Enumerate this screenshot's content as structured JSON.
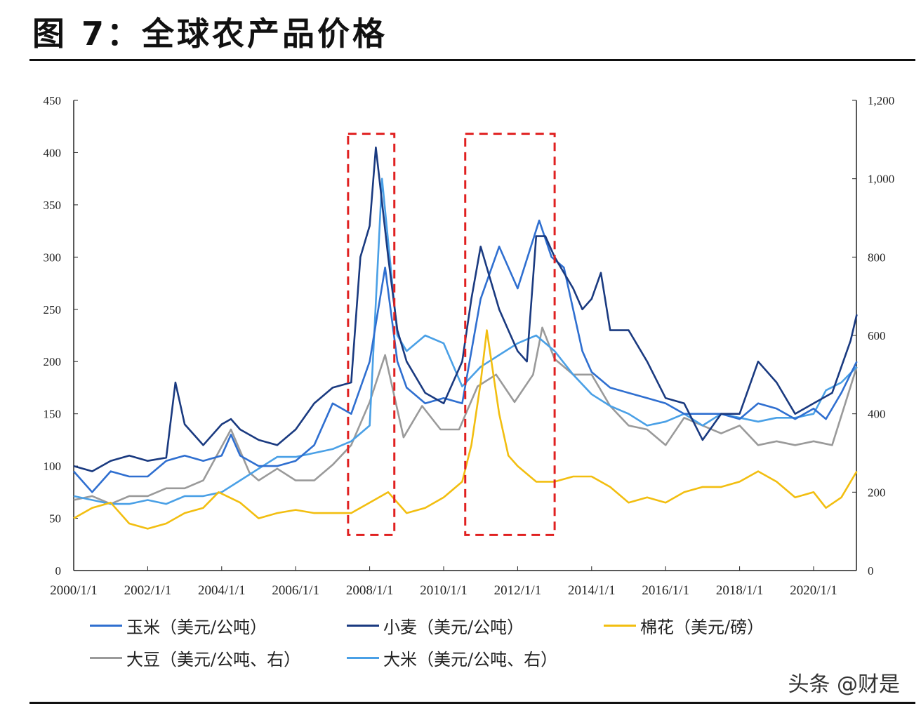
{
  "title": "图 7：全球农产品价格",
  "watermark": "头条 @财是",
  "chart_data": {
    "type": "line",
    "title": "图 7：全球农产品价格",
    "x_ticks": [
      "2000/1/1",
      "2002/1/1",
      "2004/1/1",
      "2006/1/1",
      "2008/1/1",
      "2010/1/1",
      "2012/1/1",
      "2014/1/1",
      "2016/1/1",
      "2018/1/1",
      "2020/1/1"
    ],
    "y_left": {
      "range": [
        0,
        450
      ],
      "ticks": [
        "0",
        "50",
        "100",
        "150",
        "200",
        "250",
        "300",
        "350",
        "400",
        "450"
      ]
    },
    "y_right": {
      "range": [
        0,
        1200
      ],
      "ticks": [
        "0",
        "200",
        "400",
        "600",
        "800",
        "1,000",
        "1,200"
      ]
    },
    "grid": false,
    "legend_position": "bottom",
    "series": [
      {
        "name": "玉米（美元/公吨）",
        "axis": "left",
        "color": "#2f6fd0",
        "points": [
          [
            "2000-01",
            95
          ],
          [
            "2000-07",
            75
          ],
          [
            "2001-01",
            95
          ],
          [
            "2001-07",
            90
          ],
          [
            "2002-01",
            90
          ],
          [
            "2002-07",
            105
          ],
          [
            "2003-01",
            110
          ],
          [
            "2003-07",
            105
          ],
          [
            "2004-01",
            110
          ],
          [
            "2004-04",
            130
          ],
          [
            "2004-07",
            110
          ],
          [
            "2005-01",
            100
          ],
          [
            "2005-07",
            100
          ],
          [
            "2006-01",
            105
          ],
          [
            "2006-07",
            120
          ],
          [
            "2007-01",
            160
          ],
          [
            "2007-07",
            150
          ],
          [
            "2008-01",
            200
          ],
          [
            "2008-06",
            290
          ],
          [
            "2008-10",
            200
          ],
          [
            "2009-01",
            175
          ],
          [
            "2009-07",
            160
          ],
          [
            "2010-01",
            165
          ],
          [
            "2010-07",
            160
          ],
          [
            "2011-01",
            260
          ],
          [
            "2011-07",
            310
          ],
          [
            "2012-01",
            270
          ],
          [
            "2012-08",
            335
          ],
          [
            "2012-12",
            300
          ],
          [
            "2013-04",
            290
          ],
          [
            "2013-10",
            210
          ],
          [
            "2014-01",
            190
          ],
          [
            "2014-07",
            175
          ],
          [
            "2015-01",
            170
          ],
          [
            "2015-07",
            165
          ],
          [
            "2016-01",
            160
          ],
          [
            "2016-07",
            150
          ],
          [
            "2017-01",
            150
          ],
          [
            "2017-07",
            150
          ],
          [
            "2018-01",
            145
          ],
          [
            "2018-07",
            160
          ],
          [
            "2019-01",
            155
          ],
          [
            "2019-07",
            145
          ],
          [
            "2020-01",
            155
          ],
          [
            "2020-05",
            145
          ],
          [
            "2020-10",
            170
          ],
          [
            "2021-03",
            200
          ]
        ]
      },
      {
        "name": "小麦（美元/公吨）",
        "axis": "left",
        "color": "#1a3a80",
        "points": [
          [
            "2000-01",
            100
          ],
          [
            "2000-07",
            95
          ],
          [
            "2001-01",
            105
          ],
          [
            "2001-07",
            110
          ],
          [
            "2002-01",
            105
          ],
          [
            "2002-07",
            108
          ],
          [
            "2002-10",
            180
          ],
          [
            "2003-01",
            140
          ],
          [
            "2003-07",
            120
          ],
          [
            "2004-01",
            140
          ],
          [
            "2004-04",
            145
          ],
          [
            "2004-07",
            135
          ],
          [
            "2005-01",
            125
          ],
          [
            "2005-07",
            120
          ],
          [
            "2006-01",
            135
          ],
          [
            "2006-07",
            160
          ],
          [
            "2007-01",
            175
          ],
          [
            "2007-07",
            180
          ],
          [
            "2007-10",
            300
          ],
          [
            "2008-01",
            330
          ],
          [
            "2008-03",
            405
          ],
          [
            "2008-07",
            300
          ],
          [
            "2008-10",
            230
          ],
          [
            "2009-01",
            200
          ],
          [
            "2009-07",
            170
          ],
          [
            "2010-01",
            160
          ],
          [
            "2010-07",
            200
          ],
          [
            "2010-10",
            260
          ],
          [
            "2011-01",
            310
          ],
          [
            "2011-07",
            250
          ],
          [
            "2011-10",
            230
          ],
          [
            "2012-01",
            210
          ],
          [
            "2012-04",
            200
          ],
          [
            "2012-07",
            320
          ],
          [
            "2012-10",
            320
          ],
          [
            "2013-01",
            300
          ],
          [
            "2013-07",
            270
          ],
          [
            "2013-10",
            250
          ],
          [
            "2014-01",
            260
          ],
          [
            "2014-04",
            285
          ],
          [
            "2014-07",
            230
          ],
          [
            "2015-01",
            230
          ],
          [
            "2015-07",
            200
          ],
          [
            "2016-01",
            165
          ],
          [
            "2016-07",
            160
          ],
          [
            "2017-01",
            125
          ],
          [
            "2017-07",
            150
          ],
          [
            "2018-01",
            150
          ],
          [
            "2018-07",
            200
          ],
          [
            "2019-01",
            180
          ],
          [
            "2019-07",
            150
          ],
          [
            "2020-01",
            160
          ],
          [
            "2020-07",
            170
          ],
          [
            "2021-01",
            220
          ],
          [
            "2021-03",
            245
          ]
        ]
      },
      {
        "name": "棉花（美元/磅）",
        "axis": "left",
        "color": "#f2be10",
        "points": [
          [
            "2000-01",
            50
          ],
          [
            "2000-07",
            60
          ],
          [
            "2001-01",
            65
          ],
          [
            "2001-07",
            45
          ],
          [
            "2002-01",
            40
          ],
          [
            "2002-07",
            45
          ],
          [
            "2003-01",
            55
          ],
          [
            "2003-07",
            60
          ],
          [
            "2003-12",
            75
          ],
          [
            "2004-07",
            65
          ],
          [
            "2005-01",
            50
          ],
          [
            "2005-07",
            55
          ],
          [
            "2006-01",
            58
          ],
          [
            "2006-07",
            55
          ],
          [
            "2007-01",
            55
          ],
          [
            "2007-07",
            55
          ],
          [
            "2008-01",
            65
          ],
          [
            "2008-07",
            75
          ],
          [
            "2009-01",
            55
          ],
          [
            "2009-07",
            60
          ],
          [
            "2010-01",
            70
          ],
          [
            "2010-07",
            85
          ],
          [
            "2010-10",
            120
          ],
          [
            "2011-01",
            180
          ],
          [
            "2011-03",
            230
          ],
          [
            "2011-07",
            150
          ],
          [
            "2011-10",
            110
          ],
          [
            "2012-01",
            100
          ],
          [
            "2012-07",
            85
          ],
          [
            "2013-01",
            85
          ],
          [
            "2013-07",
            90
          ],
          [
            "2014-01",
            90
          ],
          [
            "2014-07",
            80
          ],
          [
            "2015-01",
            65
          ],
          [
            "2015-07",
            70
          ],
          [
            "2016-01",
            65
          ],
          [
            "2016-07",
            75
          ],
          [
            "2017-01",
            80
          ],
          [
            "2017-07",
            80
          ],
          [
            "2018-01",
            85
          ],
          [
            "2018-07",
            95
          ],
          [
            "2019-01",
            85
          ],
          [
            "2019-07",
            70
          ],
          [
            "2020-01",
            75
          ],
          [
            "2020-05",
            60
          ],
          [
            "2020-10",
            70
          ],
          [
            "2021-03",
            95
          ]
        ]
      },
      {
        "name": "大豆（美元/公吨、右）",
        "axis": "right",
        "color": "#9a9a9a",
        "points": [
          [
            "2000-01",
            180
          ],
          [
            "2000-07",
            190
          ],
          [
            "2001-01",
            170
          ],
          [
            "2001-07",
            190
          ],
          [
            "2002-01",
            190
          ],
          [
            "2002-07",
            210
          ],
          [
            "2003-01",
            210
          ],
          [
            "2003-07",
            230
          ],
          [
            "2004-04",
            360
          ],
          [
            "2004-10",
            250
          ],
          [
            "2005-01",
            230
          ],
          [
            "2005-07",
            260
          ],
          [
            "2006-01",
            230
          ],
          [
            "2006-07",
            230
          ],
          [
            "2007-01",
            270
          ],
          [
            "2007-07",
            320
          ],
          [
            "2008-01",
            430
          ],
          [
            "2008-06",
            550
          ],
          [
            "2008-12",
            340
          ],
          [
            "2009-06",
            420
          ],
          [
            "2009-12",
            360
          ],
          [
            "2010-06",
            360
          ],
          [
            "2010-12",
            470
          ],
          [
            "2011-06",
            500
          ],
          [
            "2011-12",
            430
          ],
          [
            "2012-06",
            500
          ],
          [
            "2012-09",
            620
          ],
          [
            "2013-01",
            540
          ],
          [
            "2013-07",
            500
          ],
          [
            "2014-01",
            500
          ],
          [
            "2014-07",
            420
          ],
          [
            "2015-01",
            370
          ],
          [
            "2015-07",
            360
          ],
          [
            "2016-01",
            320
          ],
          [
            "2016-07",
            390
          ],
          [
            "2017-01",
            370
          ],
          [
            "2017-07",
            350
          ],
          [
            "2018-01",
            370
          ],
          [
            "2018-07",
            320
          ],
          [
            "2019-01",
            330
          ],
          [
            "2019-07",
            320
          ],
          [
            "2020-01",
            330
          ],
          [
            "2020-07",
            320
          ],
          [
            "2021-03",
            520
          ]
        ]
      },
      {
        "name": "大米（美元/公吨、右）",
        "axis": "right",
        "color": "#4aa0e6",
        "points": [
          [
            "2000-01",
            190
          ],
          [
            "2000-07",
            180
          ],
          [
            "2001-01",
            170
          ],
          [
            "2001-07",
            170
          ],
          [
            "2002-01",
            180
          ],
          [
            "2002-07",
            170
          ],
          [
            "2003-01",
            190
          ],
          [
            "2003-07",
            190
          ],
          [
            "2004-01",
            200
          ],
          [
            "2004-07",
            230
          ],
          [
            "2005-01",
            260
          ],
          [
            "2005-07",
            290
          ],
          [
            "2006-01",
            290
          ],
          [
            "2006-07",
            300
          ],
          [
            "2007-01",
            310
          ],
          [
            "2007-07",
            330
          ],
          [
            "2008-01",
            370
          ],
          [
            "2008-05",
            1000
          ],
          [
            "2008-10",
            600
          ],
          [
            "2009-01",
            560
          ],
          [
            "2009-07",
            600
          ],
          [
            "2010-01",
            580
          ],
          [
            "2010-07",
            470
          ],
          [
            "2011-01",
            520
          ],
          [
            "2011-07",
            550
          ],
          [
            "2012-01",
            580
          ],
          [
            "2012-07",
            600
          ],
          [
            "2013-01",
            560
          ],
          [
            "2013-07",
            500
          ],
          [
            "2014-01",
            450
          ],
          [
            "2014-07",
            420
          ],
          [
            "2015-01",
            400
          ],
          [
            "2015-07",
            370
          ],
          [
            "2016-01",
            380
          ],
          [
            "2016-07",
            400
          ],
          [
            "2017-01",
            370
          ],
          [
            "2017-07",
            400
          ],
          [
            "2018-01",
            390
          ],
          [
            "2018-07",
            380
          ],
          [
            "2019-01",
            390
          ],
          [
            "2019-07",
            390
          ],
          [
            "2020-01",
            400
          ],
          [
            "2020-05",
            460
          ],
          [
            "2020-10",
            480
          ],
          [
            "2021-03",
            520
          ]
        ]
      }
    ],
    "annotations": [
      {
        "type": "dashed-box",
        "color": "#e02020",
        "x_range": [
          "2007-06",
          "2008-09"
        ],
        "y_range_left": [
          34,
          418
        ]
      },
      {
        "type": "dashed-box",
        "color": "#e02020",
        "x_range": [
          "2010-08",
          "2013-01"
        ],
        "y_range_left": [
          34,
          418
        ]
      }
    ]
  }
}
